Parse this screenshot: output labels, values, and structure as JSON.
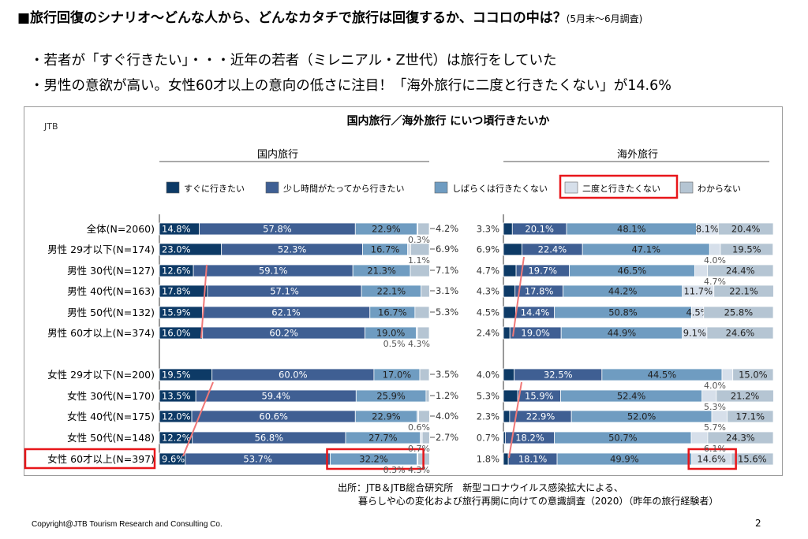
{
  "title": "■旅行回復のシナリオ〜どんな人から、どんなカタチで旅行は回復するか、ココロの中は？",
  "title_note": "(5月末〜6月調査)",
  "bullets": [
    "・若者が「すぐ行きたい」・・・近年の若者（ミレニアル・Z世代）は旅行をしていた",
    "・男性の意欲が高い。女性60才以上の意向の低さに注目！「海外旅行に二度と行きたくない」が14.6%"
  ],
  "source": [
    "出所：JTB＆JTB総合研究所　新型コロナウイルス感染拡大による、",
    "暮らしや心の変化および旅行再開に向けての意識調査（2020）（昨年の旅行経験者）"
  ],
  "copyright": "Copyright@JTB  Tourism Research and Consulting Co.",
  "page_number": "2",
  "colors": {
    "accent_red": "#e8161a",
    "trend_line": "#f07878",
    "segments": [
      "#0d3a66",
      "#3f5f93",
      "#6f9cc1",
      "#d6dfea",
      "#b5c5d3"
    ]
  },
  "chart_data": {
    "type": "bar",
    "stacked": "100%",
    "orientation": "horizontal",
    "title": "国内旅行／海外旅行 にいつ頃行きたいか",
    "corner_label": "JTB",
    "legend": [
      "すぐに行きたい",
      "少し時間がたってから行きたい",
      "しばらくは行きたくない",
      "二度と行きたくない",
      "わからない"
    ],
    "highlighted_legend": "二度と行きたくない",
    "highlighted_category": "女性 60才以上(N=397)",
    "categories": [
      "全体(N=2060)",
      "男性 29才以下(N=174)",
      "男性 30代(N=127)",
      "男性 40代(N=163)",
      "男性 50代(N=132)",
      "男性 60才以上(N=374)",
      "女性 29才以下(N=200)",
      "女性 30代(N=170)",
      "女性 40代(N=175)",
      "女性 50代(N=148)",
      "女性 60才以上(N=397)"
    ],
    "panels": [
      {
        "name": "国内旅行",
        "values": [
          [
            14.8,
            57.8,
            22.9,
            0.3,
            4.2
          ],
          [
            23.0,
            52.3,
            16.7,
            1.1,
            6.9
          ],
          [
            12.6,
            59.1,
            21.3,
            0.0,
            7.1
          ],
          [
            17.8,
            57.1,
            22.1,
            0.0,
            3.1
          ],
          [
            15.9,
            62.1,
            16.7,
            0.0,
            5.3
          ],
          [
            16.0,
            60.2,
            19.0,
            0.5,
            4.3
          ],
          [
            19.5,
            60.0,
            17.0,
            0.0,
            3.5
          ],
          [
            13.5,
            59.4,
            25.9,
            0.0,
            1.2
          ],
          [
            12.0,
            60.6,
            22.9,
            0.6,
            4.0
          ],
          [
            12.2,
            56.8,
            27.7,
            0.7,
            2.7
          ],
          [
            9.6,
            53.7,
            32.2,
            0.3,
            4.3
          ]
        ],
        "labels": [
          [
            "14.8%",
            "57.8%",
            "22.9%",
            "",
            ""
          ],
          [
            "23.0%",
            "52.3%",
            "16.7%",
            "",
            ""
          ],
          [
            "12.6%",
            "59.1%",
            "21.3%",
            "",
            ""
          ],
          [
            "17.8%",
            "57.1%",
            "22.1%",
            "",
            ""
          ],
          [
            "15.9%",
            "62.1%",
            "16.7%",
            "",
            ""
          ],
          [
            "16.0%",
            "60.2%",
            "19.0%",
            "",
            ""
          ],
          [
            "19.5%",
            "60.0%",
            "17.0%",
            "",
            ""
          ],
          [
            "13.5%",
            "59.4%",
            "25.9%",
            "",
            ""
          ],
          [
            "12.0%",
            "60.6%",
            "22.9%",
            "",
            ""
          ],
          [
            "12.2%",
            "56.8%",
            "27.7%",
            "",
            ""
          ],
          [
            "9.6%",
            "53.7%",
            "32.2%",
            "",
            ""
          ]
        ],
        "right_labels": [
          "4.2%",
          "6.9%",
          "7.1%",
          "3.1%",
          "5.3%",
          "",
          "3.5%",
          "1.2%",
          "4.0%",
          "2.7%",
          ""
        ],
        "annotations": [
          {
            "text": "0.3%",
            "row": 0,
            "where": "below-right"
          },
          {
            "text": "1.1%",
            "row": 1,
            "where": "below-right"
          },
          {
            "text": "0.5%  4.3%",
            "row": 5,
            "where": "below-right"
          },
          {
            "text": "0.6%",
            "row": 8,
            "where": "below-right"
          },
          {
            "text": "0.7%",
            "row": 9,
            "where": "below-right"
          },
          {
            "text": "0.3%  4.3%",
            "row": 10,
            "where": "below-right"
          }
        ],
        "highlight_row": 10,
        "highlight_segment": 2
      },
      {
        "name": "海外旅行",
        "values": [
          [
            3.3,
            20.1,
            48.1,
            8.1,
            20.4
          ],
          [
            6.9,
            22.4,
            47.1,
            4.0,
            19.5
          ],
          [
            4.7,
            19.7,
            46.5,
            4.7,
            24.4
          ],
          [
            4.3,
            17.8,
            44.2,
            11.7,
            22.1
          ],
          [
            4.5,
            14.4,
            50.8,
            4.5,
            25.8
          ],
          [
            2.4,
            19.0,
            44.9,
            9.1,
            24.6
          ],
          [
            4.0,
            32.5,
            44.5,
            4.0,
            15.0
          ],
          [
            5.3,
            15.9,
            52.4,
            5.3,
            21.2
          ],
          [
            2.3,
            22.9,
            52.0,
            5.7,
            17.1
          ],
          [
            0.7,
            18.2,
            50.7,
            6.1,
            24.3
          ],
          [
            1.8,
            18.1,
            49.9,
            14.6,
            15.6
          ]
        ],
        "labels": [
          [
            "",
            "20.1%",
            "48.1%",
            "8.1%",
            "20.4%"
          ],
          [
            "",
            "22.4%",
            "47.1%",
            "",
            "19.5%"
          ],
          [
            "",
            "19.7%",
            "46.5%",
            "",
            "24.4%"
          ],
          [
            "",
            "17.8%",
            "44.2%",
            "11.7%",
            "22.1%"
          ],
          [
            "",
            "14.4%",
            "50.8%",
            "4.5%",
            "25.8%"
          ],
          [
            "",
            "19.0%",
            "44.9%",
            "9.1%",
            "24.6%"
          ],
          [
            "",
            "32.5%",
            "44.5%",
            "",
            "15.0%"
          ],
          [
            "",
            "15.9%",
            "52.4%",
            "",
            "21.2%"
          ],
          [
            "",
            "22.9%",
            "52.0%",
            "",
            "17.1%"
          ],
          [
            "",
            "18.2%",
            "50.7%",
            "",
            "24.3%"
          ],
          [
            "",
            "18.1%",
            "49.9%",
            "14.6%",
            "15.6%"
          ]
        ],
        "left_labels": [
          "3.3%",
          "6.9%",
          "4.7%",
          "4.3%",
          "4.5%",
          "2.4%",
          "4.0%",
          "5.3%",
          "2.3%",
          "0.7%",
          "1.8%"
        ],
        "annotations": [
          {
            "text": "4.0%",
            "row": 1,
            "where": "below-mid"
          },
          {
            "text": "4.7%",
            "row": 2,
            "where": "below-mid"
          },
          {
            "text": "4.0%",
            "row": 6,
            "where": "below-mid"
          },
          {
            "text": "5.3%",
            "row": 7,
            "where": "below-mid"
          },
          {
            "text": "5.7%",
            "row": 8,
            "where": "below-mid"
          },
          {
            "text": "6.1%",
            "row": 9,
            "where": "below-mid"
          }
        ],
        "highlight_row": 10,
        "highlight_segment": 3
      }
    ]
  }
}
